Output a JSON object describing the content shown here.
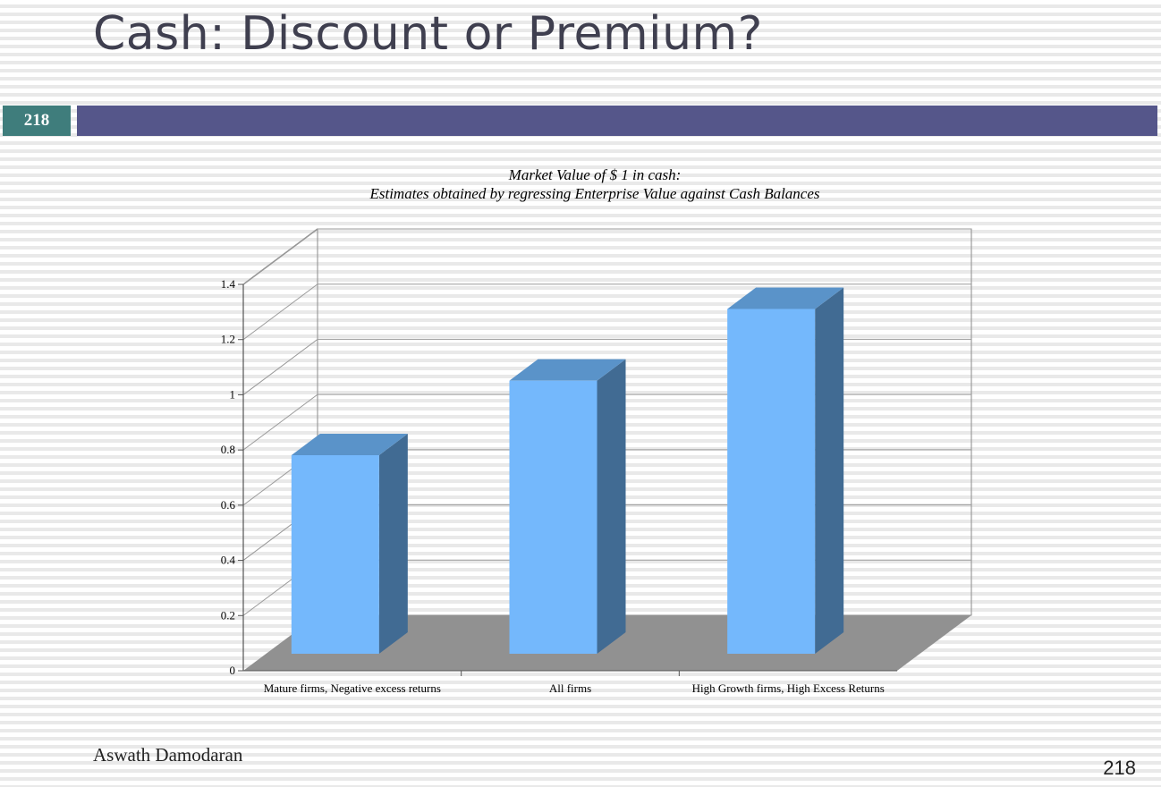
{
  "slide": {
    "title": "Cash: Discount or Premium?",
    "slide_number": "218",
    "author": "Aswath Damodaran",
    "page_number": "218"
  },
  "chart_data": {
    "type": "bar",
    "title": "Market Value of $ 1 in cash:",
    "subtitle": "Estimates obtained by regressing Enterprise Value against Cash Balances",
    "categories": [
      "Mature firms, Negative excess returns",
      "All firms",
      "High Growth firms, High Excess Returns"
    ],
    "values": [
      0.7,
      0.97,
      1.23
    ],
    "ylim": [
      0,
      1.4
    ],
    "yticks": [
      "0",
      "0.2",
      "0.4",
      "0.6",
      "0.8",
      "1",
      "1.2",
      "1.4"
    ],
    "grid": true,
    "three_d": true,
    "colors": {
      "bar_front": "#74b8fc",
      "bar_top": "#5a93c9",
      "bar_side": "#416b93",
      "floor": "#919191",
      "grid": "#9a9a9a"
    }
  }
}
